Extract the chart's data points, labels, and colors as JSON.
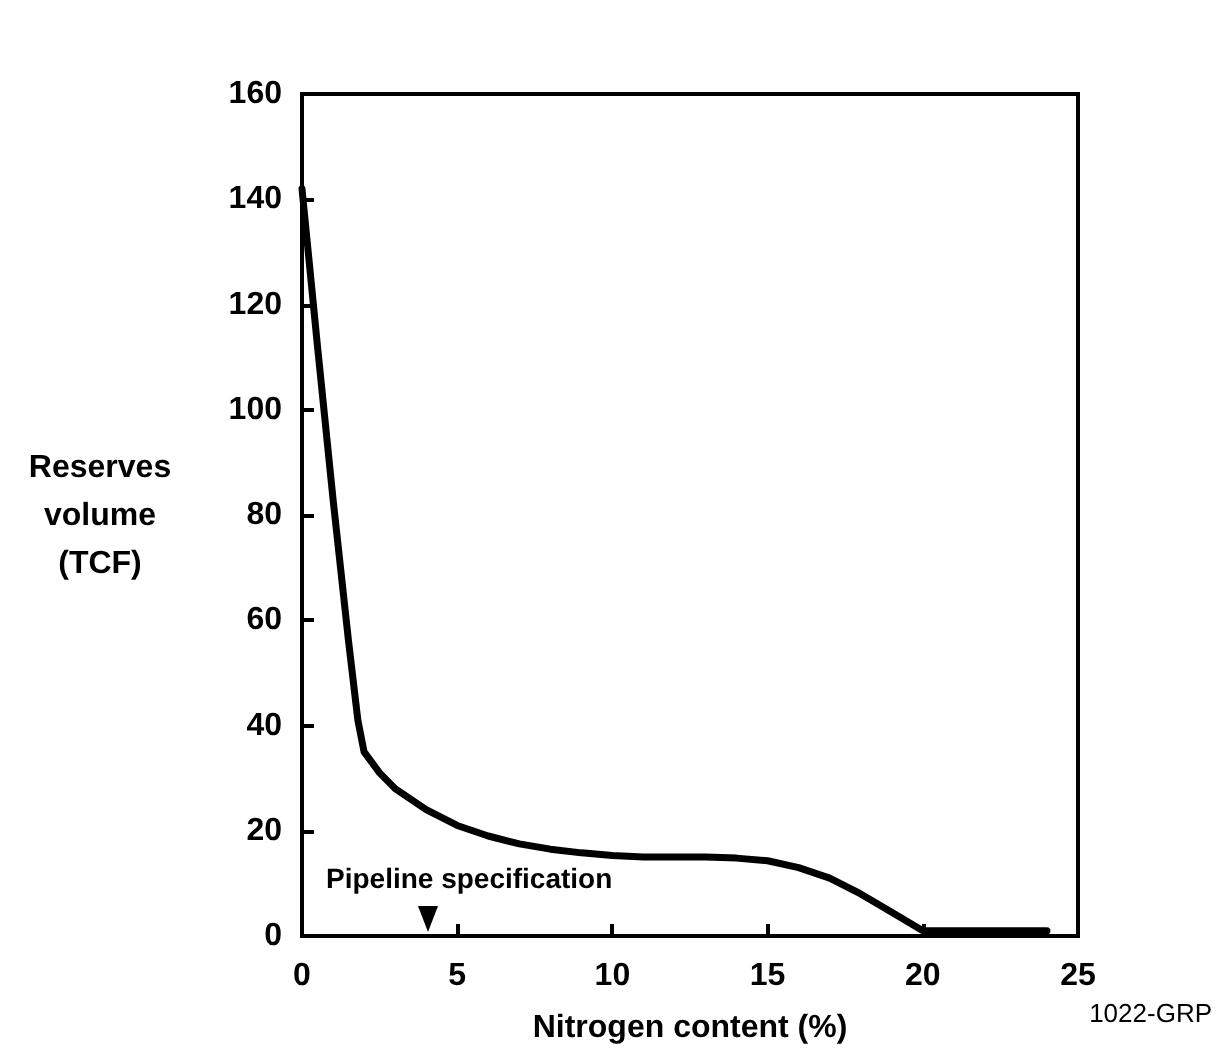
{
  "chart_data": {
    "type": "line",
    "xlabel": "Nitrogen content (%)",
    "ylabel": "Reserves\nvolume\n(TCF)",
    "x": [
      0,
      0.5,
      1,
      1.5,
      1.8,
      2,
      2.5,
      3,
      4,
      5,
      6,
      7,
      8,
      9,
      10,
      11,
      12,
      13,
      14,
      15,
      16,
      17,
      18,
      19,
      20,
      24
    ],
    "series": [
      {
        "color": "#000000",
        "values": [
          142,
          112,
          83,
          56,
          41,
          35,
          31,
          28,
          24,
          21,
          19,
          17.5,
          16.5,
          15.8,
          15.3,
          15,
          15,
          15,
          14.8,
          14.3,
          13,
          11,
          8,
          4.5,
          1,
          1
        ]
      }
    ],
    "xlim": [
      0,
      25
    ],
    "xticks": [
      0,
      5,
      10,
      15,
      20,
      25
    ],
    "ylim": [
      0,
      160
    ],
    "yticks": [
      0,
      20,
      40,
      60,
      80,
      100,
      120,
      140,
      160
    ],
    "grid": false,
    "marker": "none",
    "line_style": "solid",
    "annotations": [
      "Pipeline specification",
      "1022-GRP"
    ]
  }
}
